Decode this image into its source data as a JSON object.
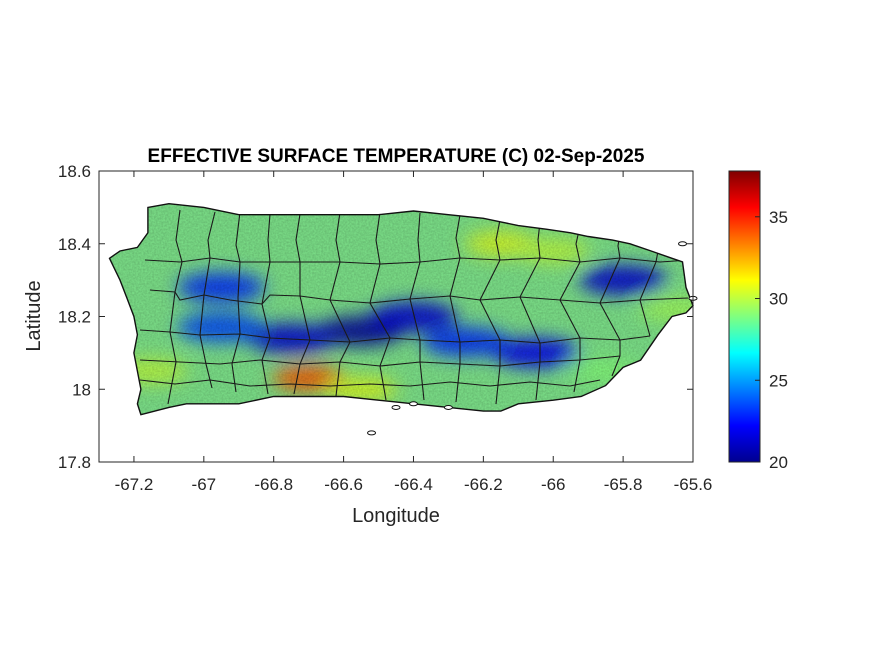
{
  "figure": {
    "title": "EFFECTIVE SURFACE TEMPERATURE (C) 02-Sep-2025",
    "xlabel": "Longitude",
    "ylabel": "Latitude"
  },
  "chart_data": {
    "type": "heatmap",
    "title": "EFFECTIVE SURFACE TEMPERATURE (C) 02-Sep-2025",
    "xlabel": "Longitude",
    "ylabel": "Latitude",
    "xlim": [
      -67.3,
      -65.6
    ],
    "ylim": [
      17.8,
      18.6
    ],
    "x_ticks": [
      -67.2,
      -67,
      -66.8,
      -66.6,
      -66.4,
      -66.2,
      -66,
      -65.8,
      -65.6
    ],
    "x_tick_labels": [
      "-67.2",
      "-67",
      "-66.8",
      "-66.6",
      "-66.4",
      "-66.2",
      "-66",
      "-65.8",
      "-65.6"
    ],
    "y_ticks": [
      17.8,
      18,
      18.2,
      18.4,
      18.6
    ],
    "y_tick_labels": [
      "17.8",
      "18",
      "18.2",
      "18.4",
      "18.6"
    ],
    "colorbar": {
      "colormap": "jet",
      "clim": [
        20,
        37.8
      ],
      "ticks": [
        20,
        25,
        30,
        35
      ],
      "tick_labels": [
        "20",
        "25",
        "30",
        "35"
      ]
    },
    "grid": false,
    "coastline": [
      [
        -67.27,
        18.36
      ],
      [
        -67.24,
        18.38
      ],
      [
        -67.19,
        18.39
      ],
      [
        -67.16,
        18.43
      ],
      [
        -67.16,
        18.5
      ],
      [
        -67.1,
        18.51
      ],
      [
        -67.0,
        18.5
      ],
      [
        -66.9,
        18.48
      ],
      [
        -66.8,
        18.48
      ],
      [
        -66.7,
        18.48
      ],
      [
        -66.6,
        18.48
      ],
      [
        -66.5,
        18.48
      ],
      [
        -66.4,
        18.49
      ],
      [
        -66.3,
        18.48
      ],
      [
        -66.2,
        18.47
      ],
      [
        -66.15,
        18.46
      ],
      [
        -66.1,
        18.45
      ],
      [
        -66.02,
        18.44
      ],
      [
        -65.95,
        18.43
      ],
      [
        -65.9,
        18.42
      ],
      [
        -65.83,
        18.41
      ],
      [
        -65.78,
        18.4
      ],
      [
        -65.72,
        18.38
      ],
      [
        -65.66,
        18.36
      ],
      [
        -65.63,
        18.35
      ],
      [
        -65.62,
        18.28
      ],
      [
        -65.6,
        18.23
      ],
      [
        -65.62,
        18.21
      ],
      [
        -65.66,
        18.2
      ],
      [
        -65.7,
        18.15
      ],
      [
        -65.75,
        18.08
      ],
      [
        -65.8,
        18.06
      ],
      [
        -65.85,
        18.01
      ],
      [
        -65.92,
        17.98
      ],
      [
        -66.0,
        17.97
      ],
      [
        -66.1,
        17.96
      ],
      [
        -66.15,
        17.94
      ],
      [
        -66.2,
        17.94
      ],
      [
        -66.3,
        17.95
      ],
      [
        -66.4,
        17.96
      ],
      [
        -66.5,
        17.97
      ],
      [
        -66.6,
        17.98
      ],
      [
        -66.7,
        17.98
      ],
      [
        -66.8,
        17.98
      ],
      [
        -66.9,
        17.96
      ],
      [
        -66.96,
        17.96
      ],
      [
        -67.05,
        17.96
      ],
      [
        -67.1,
        17.95
      ],
      [
        -67.18,
        17.93
      ],
      [
        -67.19,
        17.96
      ],
      [
        -67.18,
        18.0
      ],
      [
        -67.19,
        18.05
      ],
      [
        -67.2,
        18.1
      ],
      [
        -67.19,
        18.15
      ],
      [
        -67.2,
        18.2
      ],
      [
        -67.22,
        18.25
      ],
      [
        -67.24,
        18.3
      ],
      [
        -67.27,
        18.36
      ]
    ],
    "heat_peaks": [
      {
        "lon": -66.55,
        "lat": 18.16,
        "value": 20.5
      },
      {
        "lon": -66.75,
        "lat": 18.14,
        "value": 21.5
      },
      {
        "lon": -66.4,
        "lat": 18.2,
        "value": 21.5
      },
      {
        "lon": -65.8,
        "lat": 18.3,
        "value": 21.5
      },
      {
        "lon": -66.05,
        "lat": 18.1,
        "value": 22.0
      },
      {
        "lon": -66.95,
        "lat": 18.28,
        "value": 23.0
      },
      {
        "lon": -66.25,
        "lat": 18.13,
        "value": 23.0
      },
      {
        "lon": -66.95,
        "lat": 18.17,
        "value": 23.5
      },
      {
        "lon": -66.7,
        "lat": 18.03,
        "value": 34.0
      },
      {
        "lon": -67.15,
        "lat": 18.05,
        "value": 30.0
      },
      {
        "lon": -66.55,
        "lat": 18.0,
        "value": 30.5
      },
      {
        "lon": -66.15,
        "lat": 18.4,
        "value": 30.5
      },
      {
        "lon": -66.0,
        "lat": 18.38,
        "value": 30.0
      },
      {
        "lon": -65.65,
        "lat": 18.22,
        "value": 29.5
      },
      {
        "lon": -65.85,
        "lat": 18.05,
        "value": 29.0
      }
    ],
    "islets": [
      [
        -66.52,
        17.88
      ],
      [
        -66.45,
        17.95
      ],
      [
        -66.4,
        17.96
      ],
      [
        -66.3,
        17.95
      ],
      [
        -65.63,
        18.4
      ],
      [
        -65.6,
        18.25
      ]
    ]
  }
}
